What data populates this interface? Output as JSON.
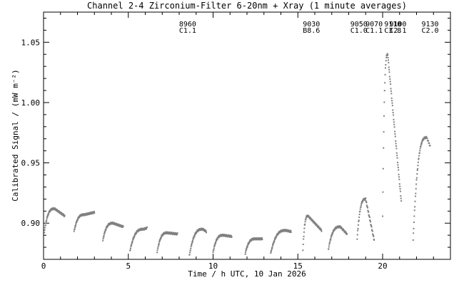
{
  "chart_data": {
    "type": "scatter",
    "title": "Channel 2-4   Zirconium-Filter   6-20nm + Xray   (1 minute averages)",
    "xlabel": "Time / h UTC, 10 Jan 2026",
    "ylabel": "Calibrated Signal / (mW m⁻²)",
    "xlim": [
      0,
      24
    ],
    "ylim": [
      0.87,
      1.075
    ],
    "x_ticks": [
      {
        "v": 0,
        "label": "0"
      },
      {
        "v": 5,
        "label": "5"
      },
      {
        "v": 10,
        "label": "10"
      },
      {
        "v": 15,
        "label": "15"
      },
      {
        "v": 20,
        "label": "20"
      }
    ],
    "y_ticks": [
      {
        "v": 0.9,
        "label": "0.90"
      },
      {
        "v": 0.95,
        "label": "0.95"
      },
      {
        "v": 1.0,
        "label": "1.00"
      },
      {
        "v": 1.05,
        "label": "1.05"
      }
    ],
    "x_minor_step": 1,
    "y_minor_step": 0.01,
    "marker_color": "#808080",
    "segments": [
      {
        "start": 0.05,
        "end": 1.25,
        "y0": 0.893,
        "ymax": 0.912,
        "peak": 0.65,
        "yend": 0.906
      },
      {
        "start": 1.8,
        "end": 3.0,
        "y0": 0.893,
        "ymax": 0.907,
        "peak": 2.4,
        "yend": 0.909
      },
      {
        "start": 3.5,
        "end": 4.7,
        "y0": 0.886,
        "ymax": 0.9,
        "peak": 4.1,
        "yend": 0.897
      },
      {
        "start": 5.1,
        "end": 6.1,
        "y0": 0.877,
        "ymax": 0.895,
        "peak": 5.9,
        "yend": 0.896
      },
      {
        "start": 6.7,
        "end": 7.9,
        "y0": 0.876,
        "ymax": 0.892,
        "peak": 7.3,
        "yend": 0.891
      },
      {
        "start": 8.6,
        "end": 9.6,
        "y0": 0.873,
        "ymax": 0.895,
        "peak": 9.4,
        "yend": 0.893
      },
      {
        "start": 10.0,
        "end": 11.1,
        "y0": 0.876,
        "ymax": 0.89,
        "peak": 10.6,
        "yend": 0.889
      },
      {
        "start": 11.9,
        "end": 12.9,
        "y0": 0.875,
        "ymax": 0.887,
        "peak": 12.5,
        "yend": 0.887
      },
      {
        "start": 13.4,
        "end": 14.6,
        "y0": 0.875,
        "ymax": 0.894,
        "peak": 14.3,
        "yend": 0.893
      },
      {
        "start": 15.3,
        "end": 16.4,
        "y0": 0.878,
        "ymax": 0.906,
        "peak": 15.6,
        "yend": 0.894
      },
      {
        "start": 16.8,
        "end": 17.9,
        "y0": 0.878,
        "ymax": 0.897,
        "peak": 17.5,
        "yend": 0.891
      },
      {
        "start": 18.5,
        "end": 19.5,
        "y0": 0.887,
        "ymax": 0.92,
        "peak": 19.0,
        "yend": 0.886
      },
      {
        "start": 20.0,
        "end": 21.1,
        "y0": 0.905,
        "ymax": 1.04,
        "peak": 20.3,
        "yend": 0.918
      },
      {
        "start": 21.8,
        "end": 22.8,
        "y0": 0.886,
        "ymax": 0.971,
        "peak": 22.6,
        "yend": 0.964
      }
    ],
    "annotations": [
      {
        "x": 8.5,
        "lines": [
          "8960",
          "C1.1"
        ]
      },
      {
        "x": 15.8,
        "lines": [
          "9030",
          "B8.6"
        ]
      },
      {
        "x": 18.6,
        "lines": [
          "9050",
          "C1.0"
        ]
      },
      {
        "x": 19.5,
        "lines": [
          "9070",
          "C1.1"
        ]
      },
      {
        "x": 20.9,
        "lines": [
          "9100",
          "C2.1"
        ]
      },
      {
        "x": 20.6,
        "lines": [
          "9110",
          "C3.8"
        ]
      },
      {
        "x": 22.8,
        "lines": [
          "9130",
          "C2.0"
        ]
      }
    ],
    "legend": false,
    "grid": false
  }
}
